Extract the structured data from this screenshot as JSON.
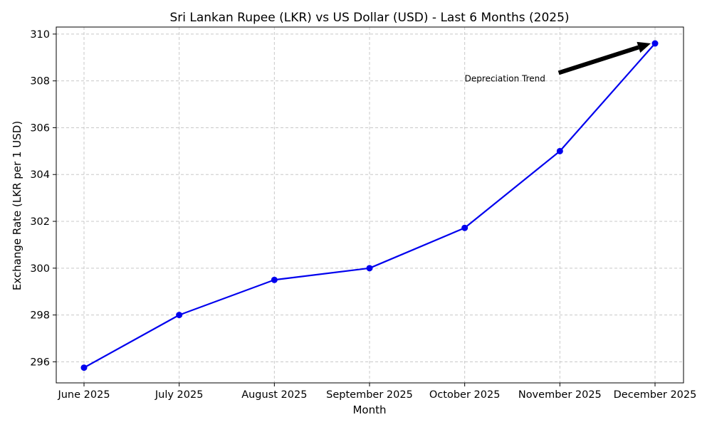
{
  "chart_data": {
    "type": "line",
    "title": "Sri Lankan Rupee (LKR) vs US Dollar (USD) - Last 6 Months (2025)",
    "xlabel": "Month",
    "ylabel": "Exchange Rate (LKR per 1 USD)",
    "categories": [
      "June 2025",
      "July 2025",
      "August 2025",
      "September 2025",
      "October 2025",
      "November 2025",
      "December 2025"
    ],
    "values": [
      295.75,
      298.0,
      299.5,
      300.0,
      301.72,
      305.0,
      309.6
    ],
    "yticks": [
      296,
      298,
      300,
      302,
      304,
      306,
      308,
      310
    ],
    "ylim": [
      295.1,
      310.3
    ],
    "grid": true,
    "line_color": "#0000ee",
    "annotation": {
      "text": "Depreciation Trend",
      "text_at": {
        "x": "October 2025",
        "y": 308.1
      },
      "arrow_to": {
        "x": "December 2025",
        "y": 309.6
      }
    }
  }
}
